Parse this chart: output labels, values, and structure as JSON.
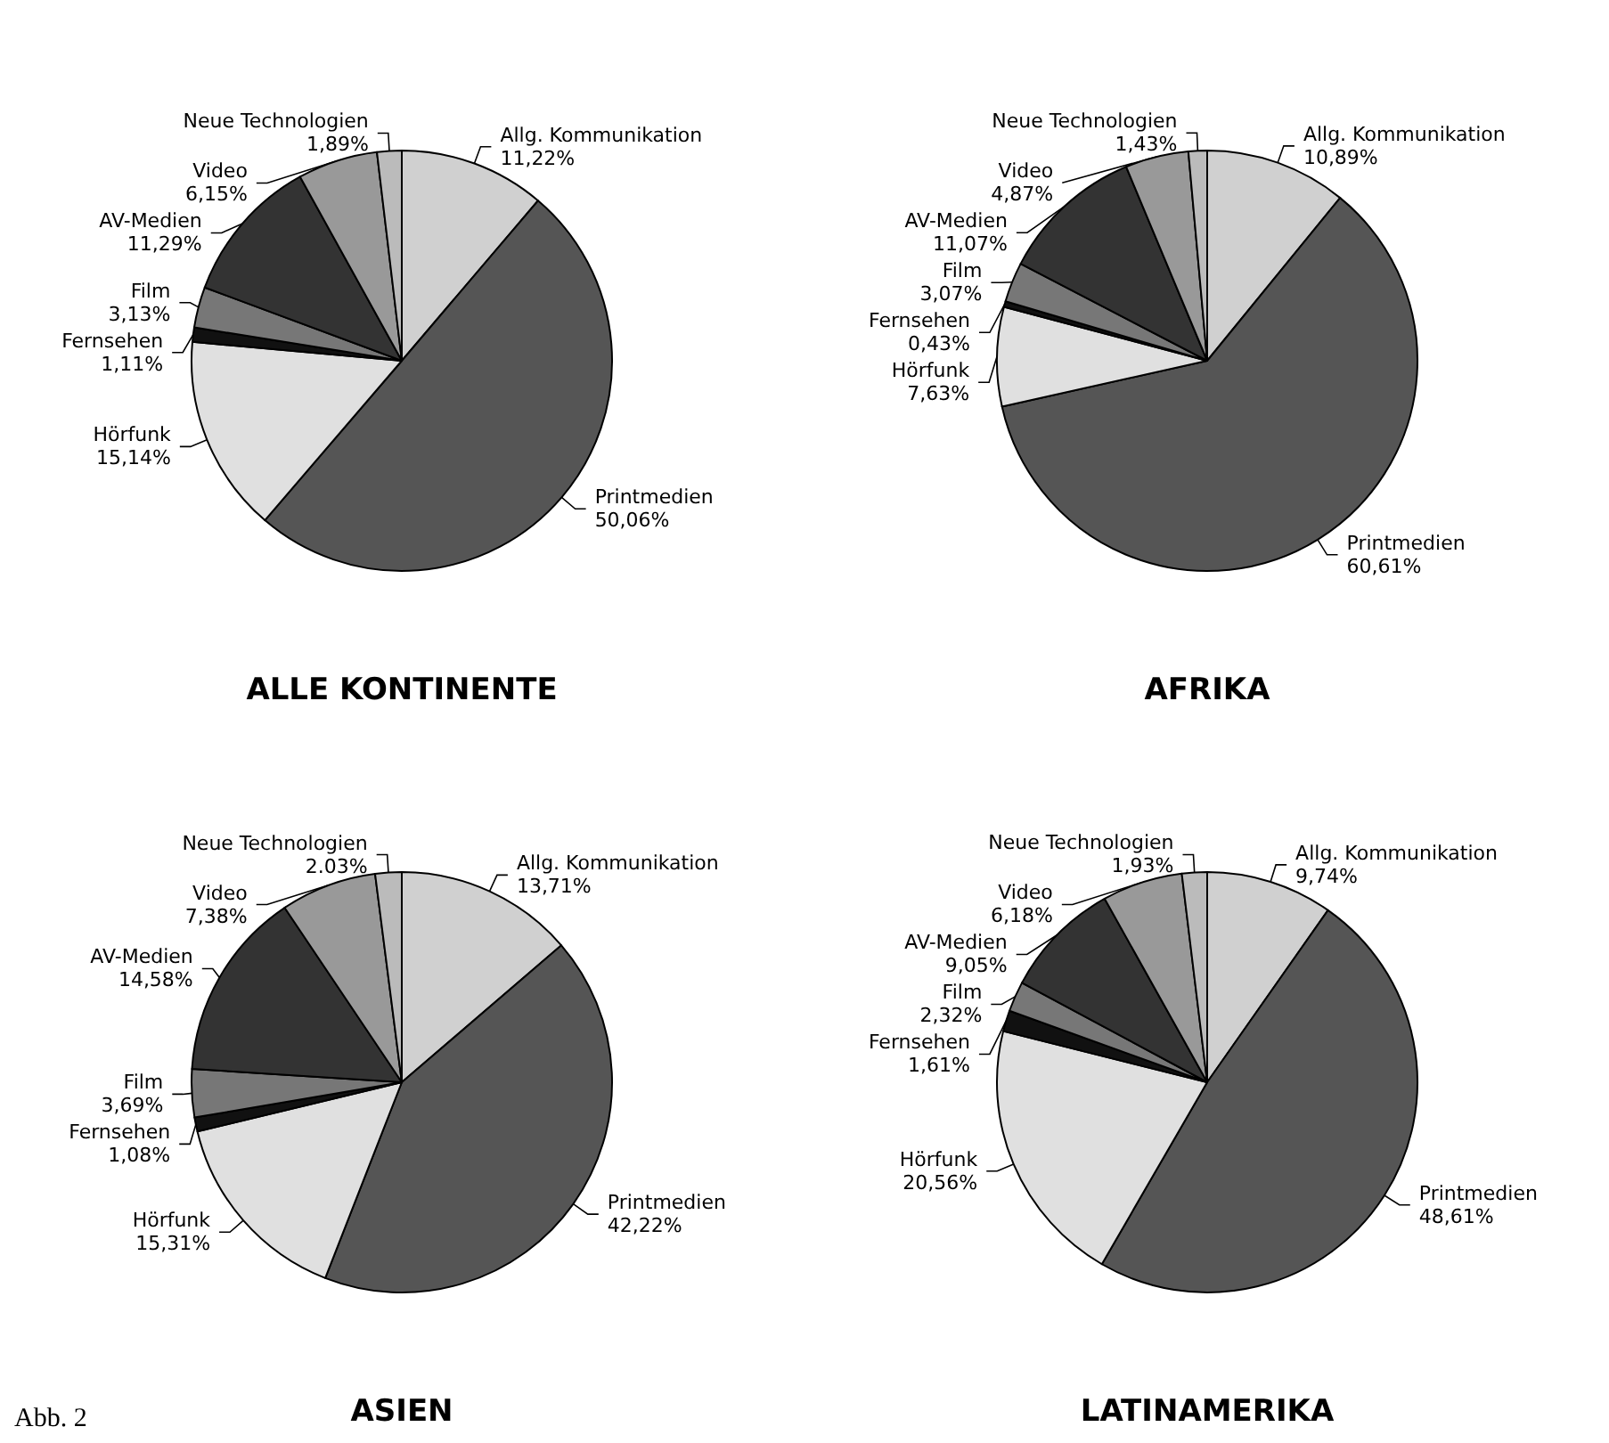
{
  "chart_data": [
    {
      "type": "pie",
      "title": "ALLE KONTINENTE",
      "categories": [
        "Allg. Kommunikation",
        "Printmedien",
        "Hörfunk",
        "Fernsehen",
        "Film",
        "AV-Medien",
        "Video",
        "Neue Technologien"
      ],
      "values": [
        11.22,
        50.06,
        15.14,
        1.11,
        3.13,
        11.29,
        6.15,
        1.89
      ],
      "value_labels": [
        "11,22%",
        "50,06%",
        "15,14%",
        "1,11%",
        "3,13%",
        "11,29%",
        "6,15%",
        "1,89%"
      ],
      "colors": [
        "#d0d0d0",
        "#555555",
        "#e0e0e0",
        "#111111",
        "#777777",
        "#333333",
        "#999999",
        "#bbbbbb"
      ]
    },
    {
      "type": "pie",
      "title": "AFRIKA",
      "categories": [
        "Allg. Kommunikation",
        "Printmedien",
        "Hörfunk",
        "Fernsehen",
        "Film",
        "AV-Medien",
        "Video",
        "Neue Technologien"
      ],
      "values": [
        10.89,
        60.61,
        7.63,
        0.43,
        3.07,
        11.07,
        4.87,
        1.43
      ],
      "value_labels": [
        "10,89%",
        "60,61%",
        "7,63%",
        "0,43%",
        "3,07%",
        "11,07%",
        "4,87%",
        "1,43%"
      ],
      "colors": [
        "#d0d0d0",
        "#555555",
        "#e0e0e0",
        "#111111",
        "#777777",
        "#333333",
        "#999999",
        "#bbbbbb"
      ]
    },
    {
      "type": "pie",
      "title": "ASIEN",
      "annotations": [
        "Abb. 2"
      ],
      "categories": [
        "Allg. Kommunikation",
        "Printmedien",
        "Hörfunk",
        "Fernsehen",
        "Film",
        "AV-Medien",
        "Video",
        "Neue Technologien"
      ],
      "values": [
        13.71,
        42.22,
        15.31,
        1.08,
        3.69,
        14.58,
        7.38,
        2.03
      ],
      "value_labels": [
        "13,71%",
        "42,22%",
        "15,31%",
        "1,08%",
        "3,69%",
        "14,58%",
        "7,38%",
        "2.03%"
      ],
      "colors": [
        "#d0d0d0",
        "#555555",
        "#e0e0e0",
        "#111111",
        "#777777",
        "#333333",
        "#999999",
        "#bbbbbb"
      ]
    },
    {
      "type": "pie",
      "title": "LATINAMERIKA",
      "categories": [
        "Allg. Kommunikation",
        "Printmedien",
        "Hörfunk",
        "Fernsehen",
        "Film",
        "AV-Medien",
        "Video",
        "Neue Technologien"
      ],
      "values": [
        9.74,
        48.61,
        20.56,
        1.61,
        2.32,
        9.05,
        6.18,
        1.93
      ],
      "value_labels": [
        "9,74%",
        "48,61%",
        "20,56%",
        "1,61%",
        "2,32%",
        "9,05%",
        "6,18%",
        "1,93%"
      ],
      "colors": [
        "#d0d0d0",
        "#555555",
        "#e0e0e0",
        "#111111",
        "#777777",
        "#333333",
        "#999999",
        "#bbbbbb"
      ]
    }
  ]
}
